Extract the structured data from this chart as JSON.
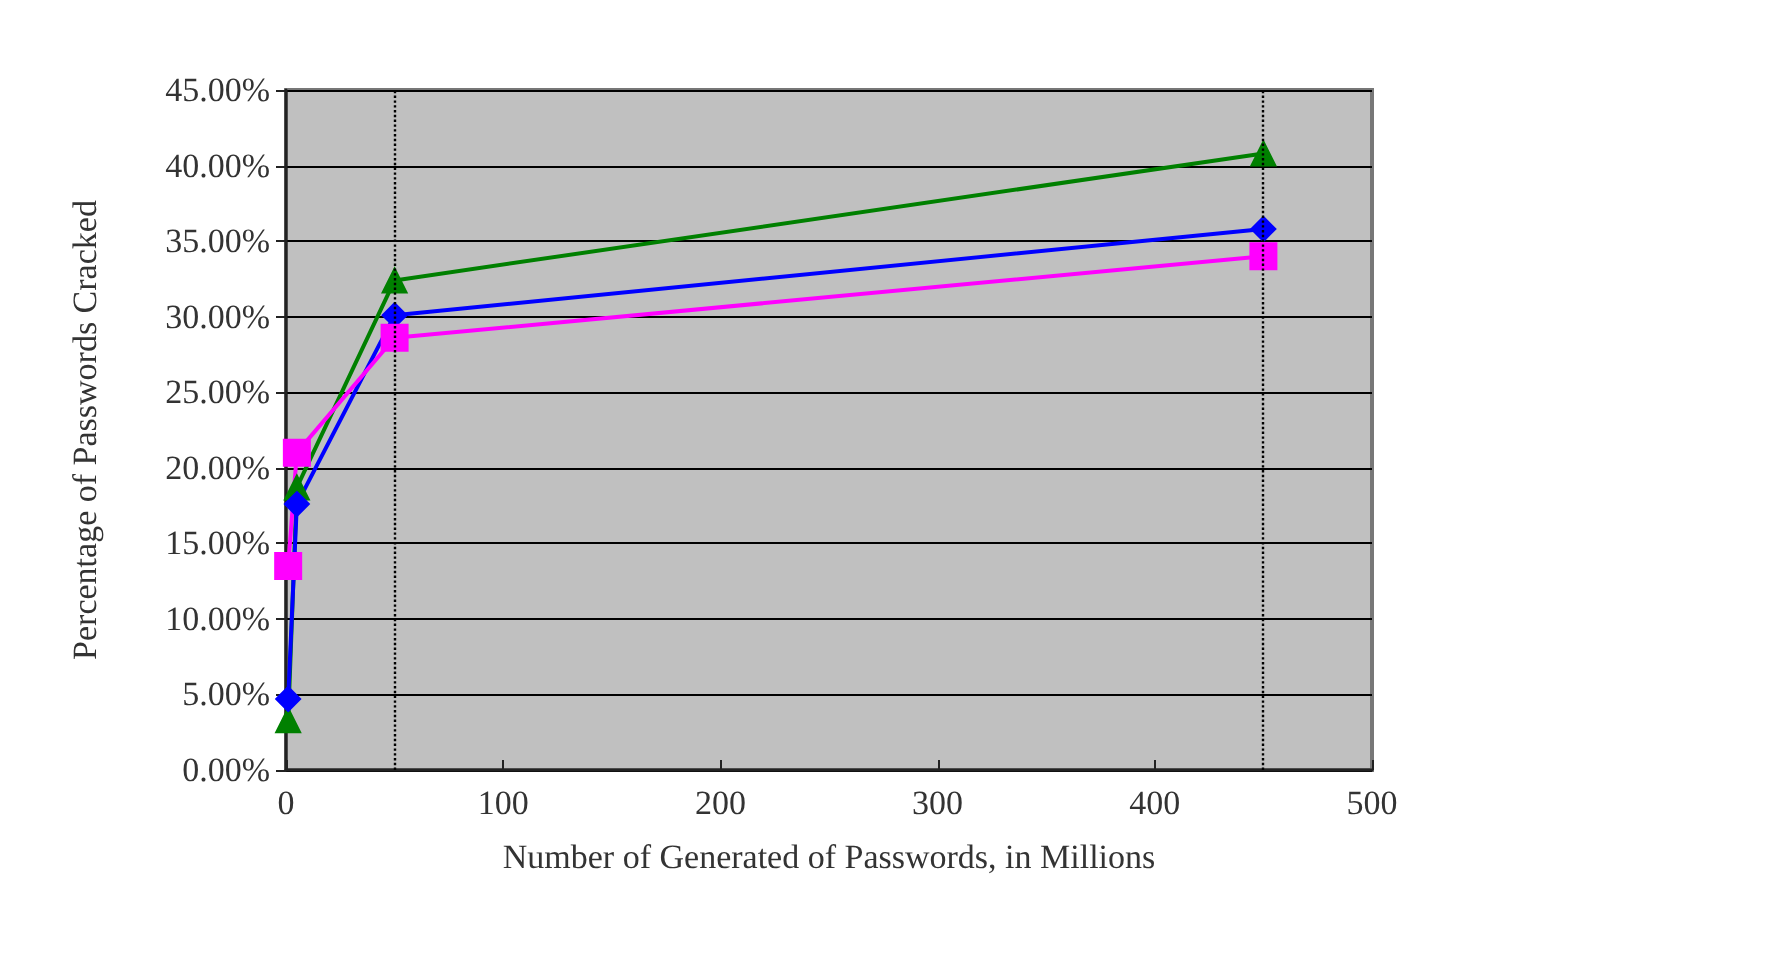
{
  "chart_data": {
    "type": "line",
    "xlabel": "Number of Generated of Passwords, in Millions",
    "ylabel": "Percentage of Passwords Cracked",
    "series": [
      {
        "color": "#008000",
        "marker": "triangle",
        "x": [
          1,
          5,
          50,
          450
        ],
        "values": [
          3.3,
          18.7,
          32.4,
          40.8
        ]
      },
      {
        "color": "#0000ff",
        "marker": "diamond",
        "x": [
          1,
          5,
          50,
          450
        ],
        "values": [
          4.7,
          17.6,
          30.1,
          35.8
        ]
      },
      {
        "color": "#ff00ff",
        "marker": "square",
        "x": [
          1,
          5,
          50,
          450
        ],
        "values": [
          13.5,
          21,
          28.6,
          34
        ]
      }
    ],
    "xlim": [
      0,
      500
    ],
    "xticks": [
      0,
      100,
      200,
      300,
      400,
      500
    ],
    "ylim": [
      0,
      45
    ],
    "yticks": [
      {
        "value": 0,
        "label": "0.00%"
      },
      {
        "value": 5,
        "label": "5.00%"
      },
      {
        "value": 10,
        "label": "10.00%"
      },
      {
        "value": 15,
        "label": "15.00%"
      },
      {
        "value": 20,
        "label": "20.00%"
      },
      {
        "value": 25,
        "label": "25.00%"
      },
      {
        "value": 30,
        "label": "30.00%"
      },
      {
        "value": 35,
        "label": "35.00%"
      },
      {
        "value": 40,
        "label": "40.00%"
      },
      {
        "value": 45,
        "label": "45.00%"
      }
    ],
    "grid": "y",
    "line_style": "solid",
    "ref_lines": [
      {
        "axis": "x",
        "value": 50,
        "color": "#000000",
        "line_style": "dotted"
      },
      {
        "axis": "x",
        "value": 450,
        "color": "#000000",
        "line_style": "dotted"
      }
    ]
  }
}
